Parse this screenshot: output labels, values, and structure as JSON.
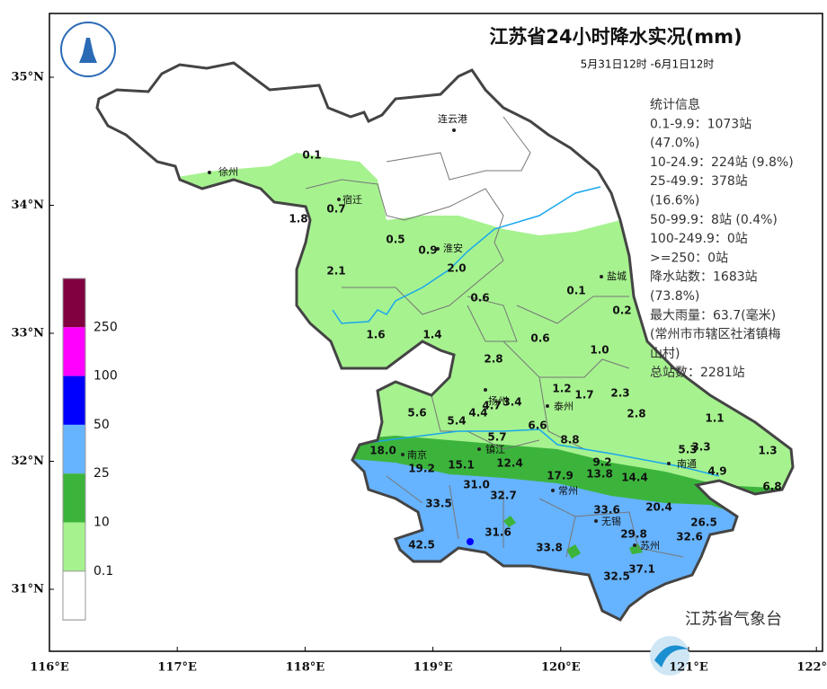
{
  "header": {
    "title": "江苏省24小时降水实况(mm)",
    "subtitle": "5月31日12时 -6月1日12时"
  },
  "stats": [
    "统计信息",
    "0.1-9.9：1073站",
    "(47.0%)",
    "10-24.9：224站 (9.8%)",
    "25-49.9：378站",
    "(16.6%)",
    "50-99.9：8站 (0.4%)",
    "100-249.9：0站",
    ">=250：0站",
    "降水站数：1683站",
    "(73.8%)",
    "最大雨量：63.7(毫米)",
    "(常州市市辖区社渚镇梅",
    "山村)",
    "总站数：2281站"
  ],
  "legend": {
    "labels": [
      "250",
      "100",
      "50",
      "25",
      "10",
      "0.1"
    ],
    "colors": [
      "#800040",
      "#ff00ff",
      "#0000ff",
      "#66b3ff",
      "#3cb43c",
      "#a6f28f",
      "#ffffff"
    ]
  },
  "axes": {
    "lat_labels": [
      "35°N",
      "34°N",
      "33°N",
      "32°N",
      "31°N"
    ],
    "lon_labels": [
      "116°E",
      "117°E",
      "118°E",
      "119°E",
      "120°E",
      "121°E",
      "122°E"
    ]
  },
  "cities": [
    "徐州",
    "宿迁",
    "连云港",
    "淮安",
    "盐城",
    "扬州",
    "泰州",
    "镇江",
    "南京",
    "常州",
    "南通",
    "无锡",
    "苏州"
  ],
  "stations": [
    "0.1",
    "0.7",
    "1.8",
    "0.5",
    "0.9",
    "2.0",
    "2.1",
    "0.6",
    "0.1",
    "0.2",
    "1.6",
    "1.4",
    "0.6",
    "1.0",
    "2.8",
    "1.2",
    "1.7",
    "2.3",
    "5.6",
    "4.7",
    "3.4",
    "4.4",
    "2.8",
    "1.1",
    "5.4",
    "6.6",
    "5.7",
    "8.8",
    "18.0",
    "5.3",
    "3.3",
    "1.3",
    "19.2",
    "15.1",
    "12.4",
    "9.2",
    "13.8",
    "17.9",
    "14.4",
    "4.9",
    "31.0",
    "6.8",
    "32.7",
    "33.5",
    "20.4",
    "33.6",
    "26.5",
    "31.6",
    "29.8",
    "32.6",
    "42.5",
    "33.8",
    "37.1",
    "32.5"
  ],
  "footer": "江苏省气象台"
}
